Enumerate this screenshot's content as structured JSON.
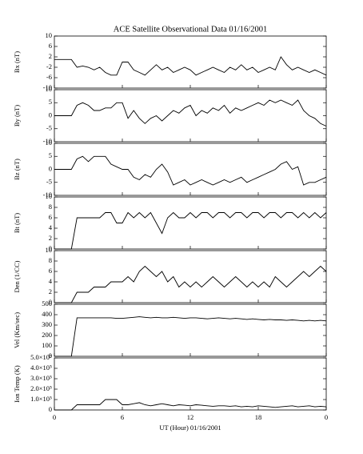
{
  "chart_data": {
    "type": "line",
    "title": "ACE Satellite Observational Data   01/16/2001",
    "xlabel": "UT (Hour)  01/16/2001",
    "xlim": [
      0,
      24
    ],
    "xticks": [
      0,
      6,
      12,
      18,
      {
        "value": 24,
        "label": "0"
      }
    ],
    "x": [
      0,
      0.5,
      1,
      1.5,
      2,
      2.5,
      3,
      3.5,
      4,
      4.5,
      5,
      5.5,
      6,
      6.5,
      7,
      7.5,
      8,
      8.5,
      9,
      9.5,
      10,
      10.5,
      11,
      11.5,
      12,
      12.5,
      13,
      13.5,
      14,
      14.5,
      15,
      15.5,
      16,
      16.5,
      17,
      17.5,
      18,
      18.5,
      19,
      19.5,
      20,
      20.5,
      21,
      21.5,
      22,
      22.5,
      23,
      23.5,
      24
    ],
    "color": "#000000",
    "panels": [
      {
        "ylabel": "Bx (nT)",
        "ylim": [
          -10,
          10
        ],
        "yticks": [
          -10,
          -6,
          -2,
          2,
          6,
          10
        ],
        "values": [
          1,
          1,
          1,
          1,
          -2,
          -1.5,
          -2,
          -3,
          -2,
          -4,
          -5,
          -5,
          0,
          0,
          -3,
          -4,
          -5,
          -3,
          -1,
          -3,
          -2,
          -4,
          -3,
          -2,
          -3,
          -5,
          -4,
          -3,
          -2,
          -3,
          -4,
          -2,
          -3,
          -1,
          -3,
          -2,
          -4,
          -3,
          -2,
          -3,
          2,
          -1,
          -3,
          -2,
          -3,
          -4,
          -3,
          -4,
          -5
        ]
      },
      {
        "ylabel": "By (nT)",
        "ylim": [
          -10,
          10
        ],
        "yticks": [
          -10,
          -5,
          0,
          5,
          10
        ],
        "values": [
          0,
          0,
          0,
          0,
          4,
          5,
          4,
          2,
          2,
          3,
          3,
          5,
          5,
          -1,
          2,
          -1,
          -3,
          -1,
          0,
          -2,
          0,
          2,
          1,
          3,
          4,
          0,
          2,
          1,
          3,
          2,
          4,
          1,
          3,
          2,
          3,
          4,
          5,
          4,
          6,
          5,
          6,
          5,
          4,
          6,
          2,
          0,
          -1,
          -3,
          -4
        ]
      },
      {
        "ylabel": "Bz (nT)",
        "ylim": [
          -10,
          10
        ],
        "yticks": [
          -10,
          -5,
          0,
          5,
          10
        ],
        "values": [
          0,
          0,
          0,
          0,
          4,
          5,
          3,
          5,
          5,
          5,
          2,
          1,
          0,
          0,
          -3,
          -4,
          -2,
          -3,
          0,
          2,
          -1,
          -6,
          -5,
          -4,
          -6,
          -5,
          -4,
          -5,
          -6,
          -5,
          -4,
          -5,
          -4,
          -3,
          -5,
          -4,
          -3,
          -2,
          -1,
          0,
          2,
          3,
          0,
          1,
          -6,
          -5,
          -5,
          -4,
          -3
        ]
      },
      {
        "ylabel": "Bt (nT)",
        "ylim": [
          0,
          10
        ],
        "yticks": [
          0,
          2,
          4,
          6,
          8,
          10
        ],
        "values": [
          0,
          0,
          0,
          0,
          6,
          6,
          6,
          6,
          6,
          7,
          7,
          5,
          5,
          7,
          6,
          7,
          6,
          7,
          5,
          3,
          6,
          7,
          6,
          6,
          7,
          6,
          7,
          7,
          6,
          7,
          7,
          6,
          7,
          7,
          6,
          7,
          7,
          6,
          7,
          7,
          6,
          7,
          7,
          6,
          7,
          6,
          7,
          6,
          7
        ]
      },
      {
        "ylabel": "Den (1/CC)",
        "ylim": [
          0,
          10
        ],
        "yticks": [
          0,
          2,
          4,
          6,
          8,
          10
        ],
        "values": [
          0,
          0,
          0,
          0,
          2,
          2,
          2,
          3,
          3,
          3,
          4,
          4,
          4,
          5,
          4,
          6,
          7,
          6,
          5,
          6,
          4,
          5,
          3,
          4,
          3,
          4,
          3,
          4,
          5,
          4,
          3,
          4,
          5,
          4,
          3,
          4,
          3,
          4,
          3,
          5,
          4,
          3,
          4,
          5,
          6,
          5,
          6,
          7,
          6
        ]
      },
      {
        "ylabel": "Vel (Km/sec)",
        "ylim": [
          0,
          500
        ],
        "yticks": [
          0,
          100,
          200,
          300,
          400,
          500
        ],
        "values": [
          0,
          0,
          0,
          0,
          370,
          370,
          370,
          370,
          370,
          370,
          370,
          365,
          365,
          370,
          375,
          380,
          375,
          370,
          375,
          370,
          370,
          375,
          370,
          365,
          370,
          370,
          365,
          360,
          365,
          370,
          365,
          360,
          365,
          360,
          355,
          360,
          355,
          350,
          355,
          350,
          350,
          345,
          350,
          345,
          340,
          345,
          340,
          345,
          340
        ]
      },
      {
        "ylabel": "Ion Temp (K)",
        "ylim": [
          0,
          500000
        ],
        "yticks": [
          0,
          {
            "value": 100000,
            "label": "1.0×10⁵"
          },
          {
            "value": 200000,
            "label": "2.0×10⁵"
          },
          {
            "value": 300000,
            "label": "3.0×10⁵"
          },
          {
            "value": 400000,
            "label": "4.0×10⁵"
          },
          {
            "value": 500000,
            "label": "5.0×10⁵"
          }
        ],
        "values": [
          0,
          0,
          0,
          0,
          50000,
          50000,
          50000,
          50000,
          50000,
          100000,
          100000,
          100000,
          50000,
          50000,
          60000,
          70000,
          50000,
          40000,
          50000,
          60000,
          50000,
          40000,
          50000,
          45000,
          40000,
          50000,
          45000,
          40000,
          35000,
          40000,
          40000,
          35000,
          40000,
          30000,
          35000,
          30000,
          40000,
          35000,
          30000,
          25000,
          30000,
          35000,
          40000,
          30000,
          35000,
          40000,
          30000,
          35000,
          30000
        ]
      }
    ]
  }
}
